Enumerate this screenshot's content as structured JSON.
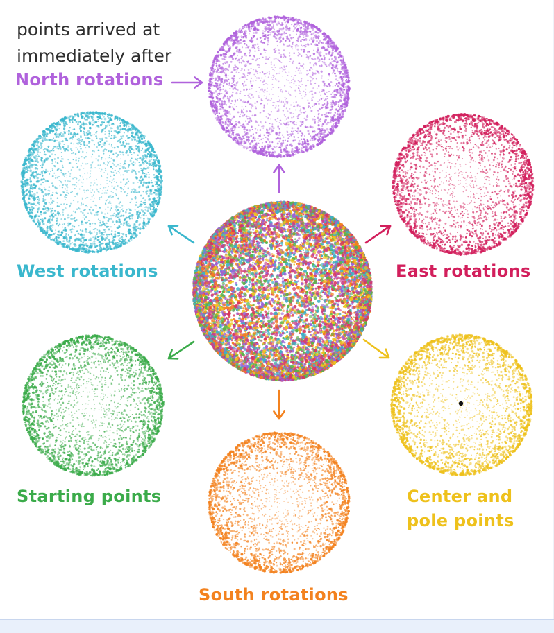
{
  "intro": {
    "line1": "points arrived at",
    "line2": "immediately after"
  },
  "spheres": {
    "center": {
      "label": "",
      "colors": [
        "#f4801f",
        "#3fb0c4",
        "#c9408a",
        "#9a63d6",
        "#5ab34a",
        "#efc41e",
        "#d8365c"
      ]
    },
    "north": {
      "label": "North rotations",
      "color": "#b062dc"
    },
    "west": {
      "label": "West rotations",
      "color": "#3ab7cd"
    },
    "east": {
      "label": "East rotations",
      "color": "#d21f5c"
    },
    "starting": {
      "label": "Starting points",
      "color": "#3bab4a"
    },
    "south": {
      "label": "South rotations",
      "color": "#f3821f"
    },
    "pole": {
      "label_line1": "Center and",
      "label_line2": "pole points",
      "color": "#eec11c"
    }
  },
  "marker_color": "#111111"
}
